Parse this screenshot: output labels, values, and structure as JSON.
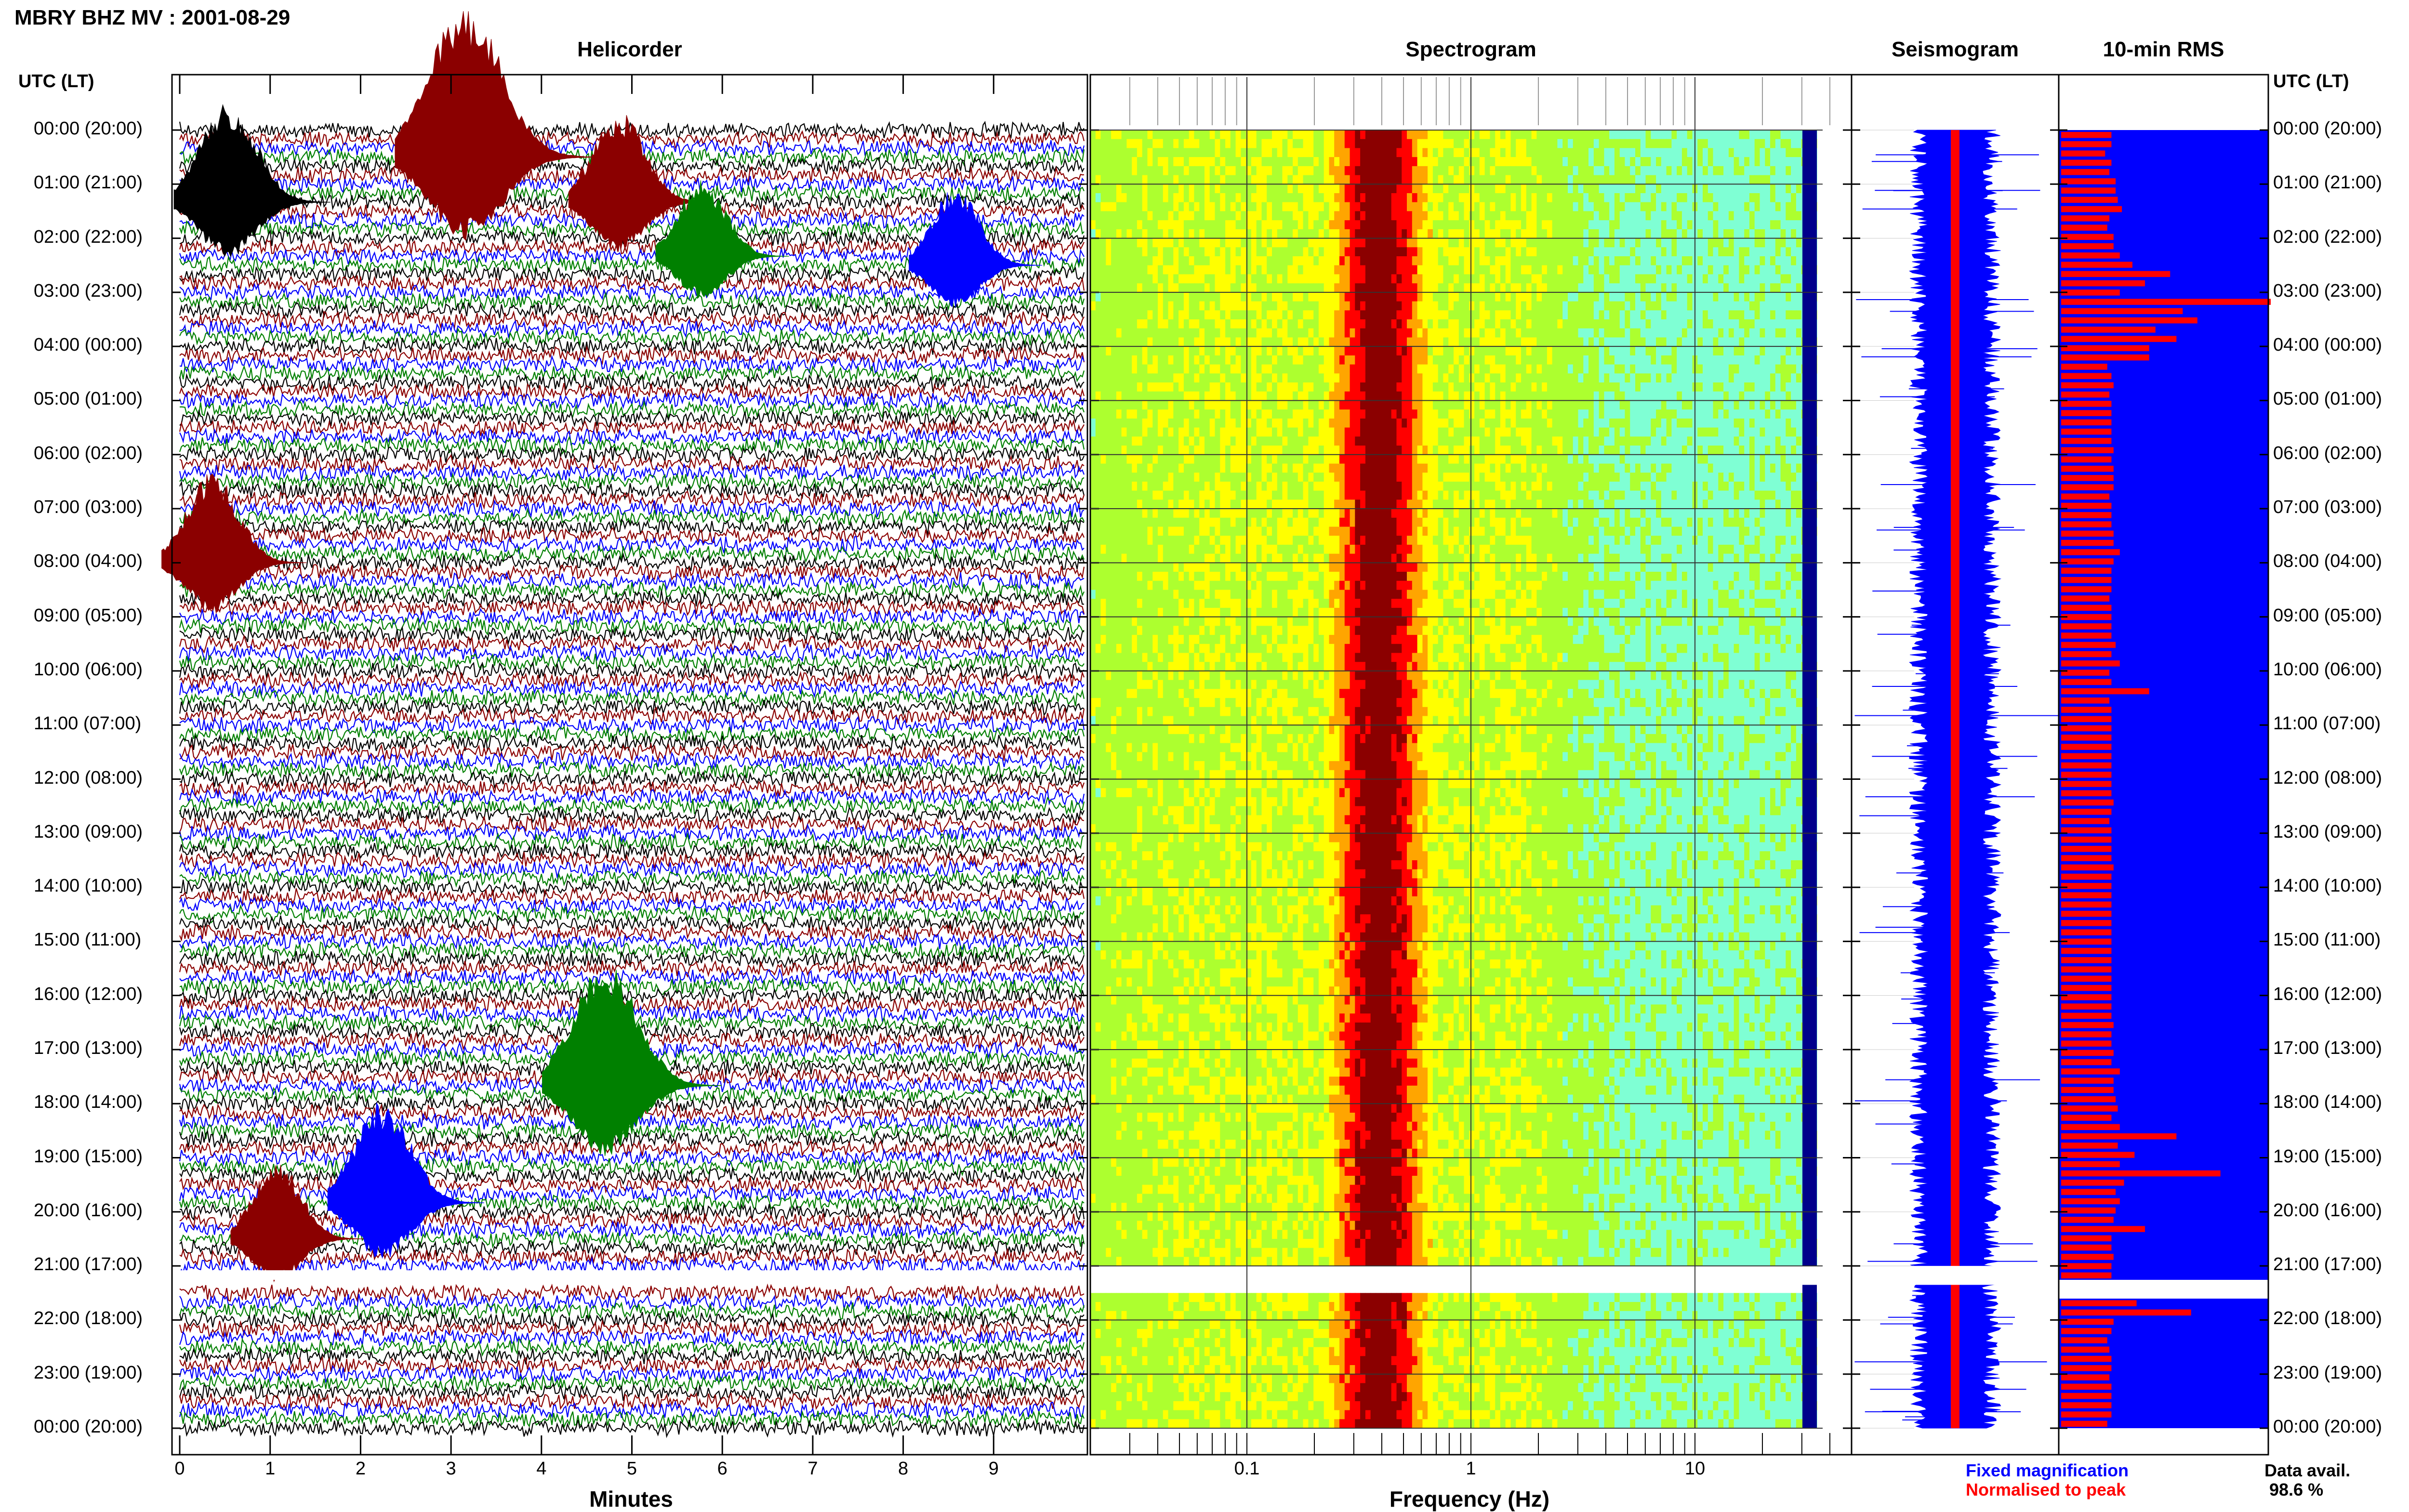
{
  "header": {
    "title": "MBRY BHZ MV : 2001-08-29",
    "utc_heading_left": "UTC (LT)",
    "utc_heading_right": "UTC (LT)"
  },
  "panels": {
    "helicorder": "Helicorder",
    "spectrogram": "Spectrogram",
    "seismogram": "Seismogram",
    "rms": "10-min RMS"
  },
  "time_labels": [
    "00:00 (20:00)",
    "01:00 (21:00)",
    "02:00 (22:00)",
    "03:00 (23:00)",
    "04:00 (00:00)",
    "05:00 (01:00)",
    "06:00 (02:00)",
    "07:00 (03:00)",
    "08:00 (04:00)",
    "09:00 (05:00)",
    "10:00 (06:00)",
    "11:00 (07:00)",
    "12:00 (08:00)",
    "13:00 (09:00)",
    "14:00 (10:00)",
    "15:00 (11:00)",
    "16:00 (12:00)",
    "17:00 (13:00)",
    "18:00 (14:00)",
    "19:00 (15:00)",
    "20:00 (16:00)",
    "21:00 (17:00)",
    "22:00 (18:00)",
    "23:00 (19:00)",
    "00:00 (20:00)"
  ],
  "legend": {
    "fixed": "Fixed magnification",
    "normalised": "Normalised to peak",
    "data_avail_label": "Data avail.",
    "data_avail_value": "98.6 %"
  },
  "colors": {
    "trace_cycle": [
      "#000000",
      "#8b0000",
      "#0000ff",
      "#008000"
    ],
    "seismo_fixed": "#0000ff",
    "seismo_norm": "#ff0000",
    "rms_bar": "#ff0000",
    "rms_bg": "#0000ff",
    "spectrogram_scale": [
      "#00008b",
      "#0000ff",
      "#00bfff",
      "#7fffd4",
      "#adff2f",
      "#ffff00",
      "#ffa500",
      "#ff0000",
      "#8b0000"
    ]
  },
  "chart_data": [
    {
      "type": "helicorder",
      "xlabel": "Minutes",
      "xlim": [
        0,
        10
      ],
      "xticks": [
        "0",
        "1",
        "2",
        "3",
        "4",
        "5",
        "6",
        "7",
        "8",
        "9"
      ],
      "traces_per_hour": 6,
      "hours": 24,
      "data_gap_utc": "21:10",
      "notable_events": [
        {
          "utc": "00:30",
          "minute": 3.5,
          "color": "dark red",
          "relative_amp": 1.0
        },
        {
          "utc": "01:20",
          "minute": 0.8,
          "color": "black",
          "relative_amp": 0.6
        },
        {
          "utc": "01:20",
          "minute": 5.1,
          "color": "dark red",
          "relative_amp": 0.5
        },
        {
          "utc": "02:20",
          "minute": 6.0,
          "color": "green",
          "relative_amp": 0.4
        },
        {
          "utc": "02:30",
          "minute": 8.8,
          "color": "blue",
          "relative_amp": 0.4
        },
        {
          "utc": "08:00",
          "minute": 0.6,
          "color": "dark red",
          "relative_amp": 0.5
        },
        {
          "utc": "17:40",
          "minute": 5.0,
          "color": "green",
          "relative_amp": 0.8
        },
        {
          "utc": "19:50",
          "minute": 2.5,
          "color": "blue",
          "relative_amp": 0.6
        },
        {
          "utc": "20:30",
          "minute": 1.3,
          "color": "dark red",
          "relative_amp": 0.4
        }
      ]
    },
    {
      "type": "heatmap",
      "title": "Spectrogram",
      "xlabel": "Frequency (Hz)",
      "xscale": "log",
      "xlim": [
        0.02,
        50
      ],
      "xticks": [
        "0.1",
        "1",
        "10"
      ],
      "peak_energy_band_hz": [
        0.25,
        0.55
      ],
      "data_gap_utc": "21:00-21:20"
    },
    {
      "type": "line",
      "title": "Seismogram",
      "series": [
        {
          "name": "Fixed magnification",
          "color": "blue"
        },
        {
          "name": "Normalised to peak",
          "color": "red"
        }
      ]
    },
    {
      "type": "bar",
      "title": "10-min RMS",
      "orientation": "horizontal",
      "relative_values": [
        0.24,
        0.24,
        0.21,
        0.24,
        0.23,
        0.26,
        0.26,
        0.27,
        0.29,
        0.23,
        0.22,
        0.25,
        0.25,
        0.28,
        0.34,
        0.52,
        0.4,
        0.28,
        1.0,
        0.58,
        0.65,
        0.45,
        0.55,
        0.42,
        0.42,
        0.22,
        0.24,
        0.25,
        0.23,
        0.24,
        0.24,
        0.24,
        0.24,
        0.24,
        0.25,
        0.24,
        0.25,
        0.25,
        0.25,
        0.23,
        0.24,
        0.24,
        0.24,
        0.25,
        0.25,
        0.28,
        0.25,
        0.24,
        0.24,
        0.24,
        0.23,
        0.24,
        0.24,
        0.24,
        0.24,
        0.26,
        0.24,
        0.28,
        0.23,
        0.24,
        0.42,
        0.23,
        0.24,
        0.24,
        0.24,
        0.24,
        0.24,
        0.24,
        0.24,
        0.24,
        0.24,
        0.24,
        0.25,
        0.24,
        0.23,
        0.24,
        0.24,
        0.24,
        0.24,
        0.25,
        0.24,
        0.24,
        0.24,
        0.24,
        0.24,
        0.24,
        0.24,
        0.24,
        0.24,
        0.24,
        0.24,
        0.24,
        0.24,
        0.24,
        0.24,
        0.24,
        0.25,
        0.24,
        0.24,
        0.25,
        0.24,
        0.28,
        0.25,
        0.25,
        0.26,
        0.27,
        0.24,
        0.28,
        0.55,
        0.27,
        0.35,
        0.28,
        0.76,
        0.3,
        0.26,
        0.28,
        0.26,
        0.25,
        0.4,
        0.24,
        0.24,
        0.25,
        0.24,
        0.24,
        null,
        null,
        0.36,
        0.62,
        0.25,
        0.24,
        0.22,
        0.23,
        0.24,
        0.24,
        0.23,
        0.24,
        0.24,
        0.24,
        0.24,
        0.22
      ]
    }
  ]
}
